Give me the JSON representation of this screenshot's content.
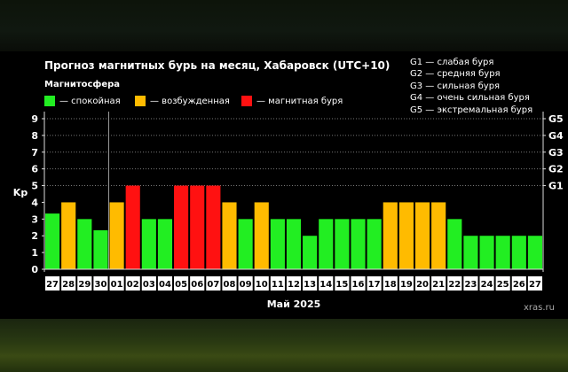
{
  "chart_data": {
    "type": "bar",
    "title": "Прогноз магнитных бурь на месяц, Хабаровск (UTC+10)",
    "subtitle": "Магнитосфера",
    "xlabel": "Май 2025",
    "ylabel": "Kp",
    "ylim": [
      0,
      9
    ],
    "yticks": [
      "0",
      "1",
      "2",
      "3",
      "4",
      "5",
      "6",
      "7",
      "8",
      "9"
    ],
    "right_ticks": [
      {
        "label": "G1",
        "kp": 5
      },
      {
        "label": "G2",
        "kp": 6
      },
      {
        "label": "G3",
        "kp": 7
      },
      {
        "label": "G4",
        "kp": 8
      },
      {
        "label": "G5",
        "kp": 9
      }
    ],
    "status_colors": {
      "quiet": "#22ee22",
      "excited": "#ffbb00",
      "storm": "#ff1111"
    },
    "legend": [
      {
        "status": "quiet",
        "label": "— спокойная"
      },
      {
        "status": "excited",
        "label": "— возбужденная"
      },
      {
        "status": "storm",
        "label": "— магнитная буря"
      }
    ],
    "storm_scale": [
      "G1 — слабая буря",
      "G2 — средняя буря",
      "G3 — сильная буря",
      "G4 — очень сильная буря",
      "G5 — экстремальная буря"
    ],
    "categories": [
      "27",
      "28",
      "29",
      "30",
      "01",
      "02",
      "03",
      "04",
      "05",
      "06",
      "07",
      "08",
      "09",
      "10",
      "11",
      "12",
      "13",
      "14",
      "15",
      "16",
      "17",
      "18",
      "19",
      "20",
      "21",
      "22",
      "23",
      "24",
      "25",
      "26",
      "27"
    ],
    "values": [
      3.33,
      4,
      3,
      2.33,
      4,
      5,
      3,
      3,
      5,
      5,
      5,
      4,
      3,
      4,
      3,
      3,
      2,
      3,
      3,
      3,
      3,
      4,
      4,
      4,
      4,
      3,
      2,
      2,
      2,
      2,
      2
    ],
    "status": [
      "quiet",
      "excited",
      "quiet",
      "quiet",
      "excited",
      "storm",
      "quiet",
      "quiet",
      "storm",
      "storm",
      "storm",
      "excited",
      "quiet",
      "excited",
      "quiet",
      "quiet",
      "quiet",
      "quiet",
      "quiet",
      "quiet",
      "quiet",
      "excited",
      "excited",
      "excited",
      "excited",
      "quiet",
      "quiet",
      "quiet",
      "quiet",
      "quiet",
      "quiet"
    ]
  },
  "watermark": "xras.ru"
}
